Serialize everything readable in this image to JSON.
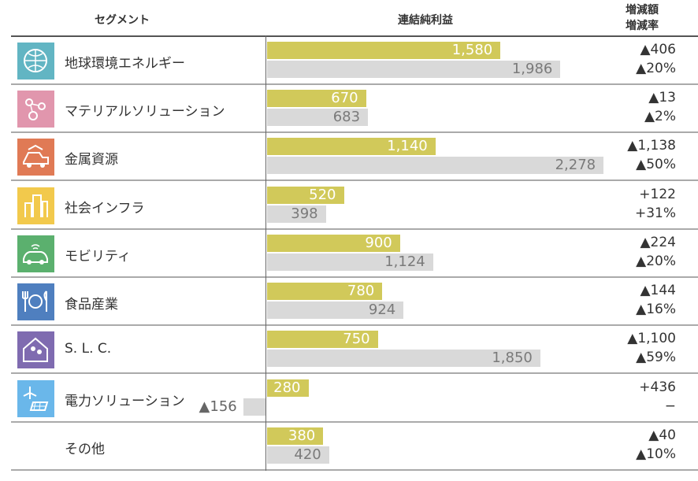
{
  "headers": {
    "segment": "セグメント",
    "profit": "連結純利益",
    "change_amount": "増減額",
    "change_rate": "増減率"
  },
  "colors": {
    "current_bar": "#d1c95a",
    "prior_bar": "#d9d9d9"
  },
  "chart_data": {
    "type": "bar",
    "orientation": "horizontal",
    "categories": [
      "地球環境エネルギー",
      "マテリアルソリューション",
      "金属資源",
      "社会インフラ",
      "モビリティ",
      "食品産業",
      "S. L. C.",
      "電力ソリューション",
      "その他"
    ],
    "series": [
      {
        "values": [
          1580,
          670,
          1140,
          520,
          900,
          780,
          750,
          280,
          380
        ],
        "labels": [
          "1,580",
          "670",
          "1,140",
          "520",
          "900",
          "780",
          "750",
          "280",
          "380"
        ]
      },
      {
        "values": [
          1986,
          683,
          2278,
          398,
          1124,
          924,
          1850,
          -156,
          420
        ],
        "labels": [
          "1,986",
          "683",
          "2,278",
          "398",
          "1,124",
          "924",
          "1,850",
          "▲156",
          "420"
        ]
      }
    ],
    "change_amount": [
      "▲406",
      "▲13",
      "▲1,138",
      "+122",
      "▲224",
      "▲144",
      "▲1,100",
      "+436",
      "▲40"
    ],
    "change_rate": [
      "▲20%",
      "▲2%",
      "▲50%",
      "+31%",
      "▲20%",
      "▲16%",
      "▲59%",
      "−",
      "▲10%"
    ],
    "icons": [
      {
        "name": "globe-icon",
        "color": "#62b5c3"
      },
      {
        "name": "molecule-icon",
        "color": "#e196ad"
      },
      {
        "name": "mining-truck-icon",
        "color": "#e07a55"
      },
      {
        "name": "buildings-icon",
        "color": "#f2c94c"
      },
      {
        "name": "car-icon",
        "color": "#5bb06e"
      },
      {
        "name": "dining-icon",
        "color": "#4f7fbf"
      },
      {
        "name": "people-home-icon",
        "color": "#7f6bb0"
      },
      {
        "name": "wind-solar-icon",
        "color": "#6ab7ea"
      },
      null
    ]
  }
}
